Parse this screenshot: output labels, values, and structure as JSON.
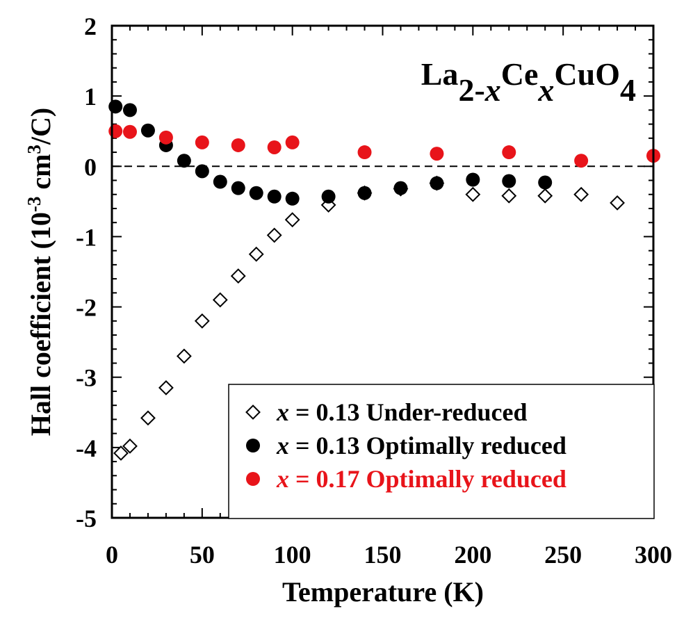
{
  "chart_data": {
    "type": "scatter",
    "xlabel": "Temperature (K)",
    "ylabel_parts": [
      "Hall coefficient (10",
      "-3",
      " cm",
      "3",
      "/C)"
    ],
    "xlim": [
      0,
      300
    ],
    "ylim": [
      -5,
      2
    ],
    "xticks": [
      0,
      50,
      100,
      150,
      200,
      250,
      300
    ],
    "yticks": [
      2,
      1,
      0,
      -1,
      -2,
      -3,
      -4,
      -5
    ],
    "x_minor_step": 10,
    "y_minor_step": 0.2,
    "zero_line": "dashed",
    "formula_parts": [
      {
        "text": "La",
        "sub": false
      },
      {
        "text": "2-",
        "sub": true
      },
      {
        "text": "x",
        "sub": true,
        "italic": true
      },
      {
        "text": "Ce",
        "sub": false
      },
      {
        "text": "x",
        "sub": true,
        "italic": true
      },
      {
        "text": "CuO",
        "sub": false
      },
      {
        "text": "4",
        "sub": true
      }
    ],
    "legend_position": "bottom-right",
    "series": [
      {
        "name": "x = 0.13 Under-reduced",
        "x_label": "x",
        "rest_label": " = 0.13 Under-reduced",
        "marker": "diamond-open",
        "color": "#000000",
        "x": [
          5,
          10,
          20,
          30,
          40,
          50,
          60,
          70,
          80,
          90,
          100,
          120,
          140,
          160,
          180,
          200,
          220,
          240,
          260,
          280
        ],
        "y": [
          -4.08,
          -3.98,
          -3.58,
          -3.15,
          -2.7,
          -2.2,
          -1.9,
          -1.56,
          -1.25,
          -0.98,
          -0.76,
          -0.55,
          -0.38,
          -0.32,
          -0.24,
          -0.4,
          -0.42,
          -0.42,
          -0.4,
          -0.52
        ]
      },
      {
        "name": "x = 0.13 Optimally reduced",
        "x_label": "x",
        "rest_label": " = 0.13 Optimally reduced",
        "marker": "circle-filled",
        "color": "#000000",
        "x": [
          2,
          10,
          20,
          30,
          40,
          50,
          60,
          70,
          80,
          90,
          100,
          120,
          140,
          160,
          180,
          200,
          220,
          240
        ],
        "y": [
          0.85,
          0.8,
          0.51,
          0.3,
          0.08,
          -0.07,
          -0.22,
          -0.31,
          -0.38,
          -0.43,
          -0.46,
          -0.43,
          -0.38,
          -0.31,
          -0.24,
          -0.19,
          -0.21,
          -0.23
        ]
      },
      {
        "name": "x = 0.17 Optimally reduced",
        "x_label": "x",
        "rest_label": " = 0.17 Optimally reduced",
        "marker": "circle-filled",
        "color": "#e8141a",
        "x": [
          2,
          10,
          30,
          50,
          70,
          90,
          100,
          140,
          180,
          220,
          260,
          300
        ],
        "y": [
          0.5,
          0.49,
          0.41,
          0.34,
          0.3,
          0.27,
          0.34,
          0.2,
          0.18,
          0.2,
          0.08,
          0.15
        ]
      }
    ]
  }
}
